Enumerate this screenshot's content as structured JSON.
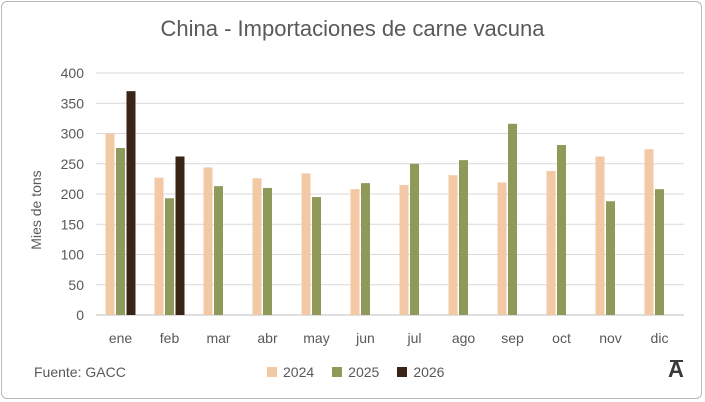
{
  "chart_data": {
    "type": "bar",
    "title": "China - Importaciones de carne vacuna",
    "ylabel": "Mies de tons",
    "xlabel": "",
    "ylim": [
      0,
      400
    ],
    "yticks": [
      0,
      50,
      100,
      150,
      200,
      250,
      300,
      350,
      400
    ],
    "grid": true,
    "legend_position": "bottom",
    "categories": [
      "ene",
      "feb",
      "mar",
      "abr",
      "may",
      "jun",
      "jul",
      "ago",
      "sep",
      "oct",
      "nov",
      "dic"
    ],
    "series": [
      {
        "name": "2024",
        "color": "#f2c8a5",
        "values": [
          300,
          227,
          244,
          226,
          234,
          208,
          215,
          231,
          219,
          238,
          262,
          274
        ]
      },
      {
        "name": "2025",
        "color": "#8f9a5a",
        "values": [
          276,
          193,
          213,
          210,
          195,
          218,
          250,
          256,
          316,
          281,
          188,
          208
        ]
      },
      {
        "name": "2026",
        "color": "#3a2416",
        "values": [
          370,
          262,
          null,
          null,
          null,
          null,
          null,
          null,
          null,
          null,
          null,
          null
        ]
      }
    ]
  },
  "footer": {
    "source": "Fuente: GACC",
    "logo_text": "A"
  }
}
